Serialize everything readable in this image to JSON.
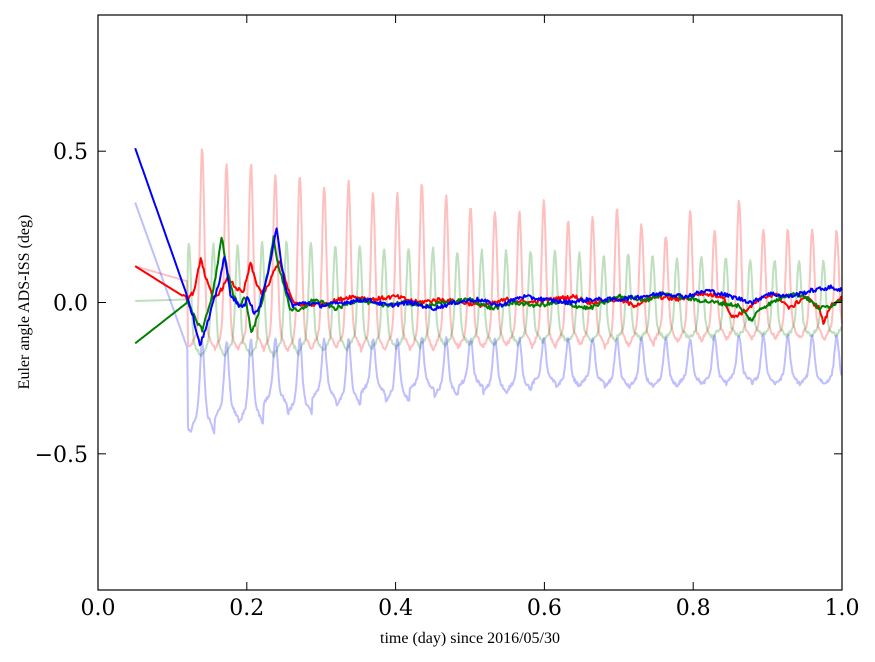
{
  "chart_data": {
    "type": "line",
    "title": "",
    "xlabel": "time (day) since 2016/05/30",
    "ylabel": "Euler angle ADS-ISS (deg)",
    "xlim": [
      0.0,
      1.0
    ],
    "ylim": [
      -0.95,
      0.95
    ],
    "xticks": [
      0.0,
      0.2,
      0.4,
      0.6,
      0.8,
      1.0
    ],
    "xtick_labels": [
      "0.0",
      "0.2",
      "0.4",
      "0.6",
      "0.8",
      "1.0"
    ],
    "yticks": [
      -0.5,
      0.0,
      0.5
    ],
    "ytick_labels": [
      "−0.5",
      "0.0",
      "0.5"
    ],
    "grid": false,
    "legend": "none",
    "series": [
      {
        "color": "#ff0000",
        "alpha": 0.25,
        "linewidth": 2,
        "model": {
          "start": [
            0.05,
            0.12
          ],
          "settle": 0.12,
          "mean": 0.07,
          "period": 0.0328,
          "phase": 0.14,
          "peaks": [
            0.51,
            0.46,
            0.46,
            0.42,
            0.42,
            0.38,
            0.4,
            0.36,
            0.36,
            0.39,
            0.35,
            0.32,
            0.3,
            0.3,
            0.34,
            0.27,
            0.28,
            0.31,
            0.26,
            0.22,
            0.3,
            0.24,
            0.34,
            0.24
          ],
          "lows": [
            -0.15,
            -0.16,
            -0.15,
            -0.16,
            -0.16,
            -0.15,
            -0.15,
            -0.16,
            -0.15,
            -0.16,
            -0.15,
            -0.15,
            -0.15,
            -0.14,
            -0.15,
            -0.14,
            -0.14,
            -0.15,
            -0.14,
            -0.13,
            -0.13,
            -0.12,
            -0.12,
            -0.12
          ]
        }
      },
      {
        "color": "#008000",
        "alpha": 0.25,
        "linewidth": 2,
        "model": {
          "start": [
            0.05,
            0.005
          ],
          "settle": 0.12,
          "mean": 0.01,
          "period": 0.0328,
          "phase": 0.155,
          "peaks": [
            0.19,
            0.19,
            0.2,
            0.2,
            0.2,
            0.19,
            0.19,
            0.18,
            0.18,
            0.18,
            0.17,
            0.17,
            0.17,
            0.17,
            0.17,
            0.16,
            0.16,
            0.16,
            0.16,
            0.15,
            0.15,
            0.15,
            0.14,
            0.14
          ],
          "lows": [
            -0.18,
            -0.17,
            -0.18,
            -0.17,
            -0.16,
            -0.16,
            -0.15,
            -0.15,
            -0.15,
            -0.14,
            -0.14,
            -0.14,
            -0.14,
            -0.13,
            -0.13,
            -0.13,
            -0.13,
            -0.12,
            -0.12,
            -0.12,
            -0.12,
            -0.11,
            -0.11,
            -0.11
          ]
        }
      },
      {
        "color": "#0000ff",
        "alpha": 0.25,
        "linewidth": 2,
        "model": {
          "start": [
            0.05,
            0.33
          ],
          "settle": 0.12,
          "mean": -0.15,
          "period": 0.0328,
          "phase": 0.14,
          "peaks": [
            -0.13,
            -0.13,
            -0.12,
            -0.12,
            -0.12,
            -0.12,
            -0.12,
            -0.12,
            -0.12,
            -0.12,
            -0.12,
            -0.12,
            -0.12,
            -0.12,
            -0.12,
            -0.12,
            -0.12,
            -0.12,
            -0.12,
            -0.12,
            -0.12,
            -0.11,
            -0.11,
            -0.11
          ],
          "lows": [
            -0.43,
            -0.39,
            -0.4,
            -0.34,
            -0.37,
            -0.32,
            -0.34,
            -0.3,
            -0.33,
            -0.29,
            -0.31,
            -0.28,
            -0.3,
            -0.29,
            -0.27,
            -0.28,
            -0.27,
            -0.28,
            -0.28,
            -0.28,
            -0.27,
            -0.27,
            -0.26,
            -0.27
          ]
        }
      },
      {
        "color": "#ff0000",
        "alpha": 1.0,
        "linewidth": 2,
        "points": [
          [
            0.05,
            0.12
          ],
          [
            0.115,
            0.02
          ],
          [
            0.12,
            0.01
          ],
          [
            0.13,
            0.04
          ],
          [
            0.138,
            0.15
          ],
          [
            0.145,
            0.08
          ],
          [
            0.155,
            0.01
          ],
          [
            0.165,
            0.04
          ],
          [
            0.175,
            0.08
          ],
          [
            0.185,
            0.05
          ],
          [
            0.195,
            0.03
          ],
          [
            0.205,
            0.13
          ],
          [
            0.212,
            0.07
          ],
          [
            0.22,
            0.03
          ],
          [
            0.228,
            0.05
          ],
          [
            0.236,
            0.1
          ],
          [
            0.244,
            0.14
          ],
          [
            0.252,
            0.07
          ],
          [
            0.262,
            0.0
          ],
          [
            0.28,
            -0.01
          ],
          [
            0.31,
            0.0
          ],
          [
            0.34,
            0.02
          ],
          [
            0.37,
            0.01
          ],
          [
            0.4,
            0.02
          ],
          [
            0.43,
            0.0
          ],
          [
            0.46,
            0.01
          ],
          [
            0.49,
            0.0
          ],
          [
            0.52,
            -0.01
          ],
          [
            0.55,
            0.01
          ],
          [
            0.58,
            0.0
          ],
          [
            0.61,
            0.01
          ],
          [
            0.64,
            0.02
          ],
          [
            0.66,
            0.0
          ],
          [
            0.7,
            0.01
          ],
          [
            0.72,
            -0.01
          ],
          [
            0.75,
            0.02
          ],
          [
            0.78,
            0.01
          ],
          [
            0.81,
            0.03
          ],
          [
            0.84,
            0.02
          ],
          [
            0.852,
            -0.05
          ],
          [
            0.868,
            -0.03
          ],
          [
            0.89,
            0.01
          ],
          [
            0.91,
            0.03
          ],
          [
            0.93,
            -0.02
          ],
          [
            0.95,
            0.02
          ],
          [
            0.97,
            -0.02
          ],
          [
            0.975,
            -0.07
          ],
          [
            0.985,
            -0.01
          ],
          [
            1.0,
            0.02
          ]
        ]
      },
      {
        "color": "#008000",
        "alpha": 1.0,
        "linewidth": 2,
        "points": [
          [
            0.05,
            -0.135
          ],
          [
            0.12,
            0.0
          ],
          [
            0.13,
            -0.05
          ],
          [
            0.14,
            -0.09
          ],
          [
            0.15,
            -0.01
          ],
          [
            0.158,
            0.08
          ],
          [
            0.166,
            0.22
          ],
          [
            0.174,
            0.1
          ],
          [
            0.182,
            0.02
          ],
          [
            0.19,
            -0.01
          ],
          [
            0.198,
            0.02
          ],
          [
            0.206,
            -0.1
          ],
          [
            0.214,
            -0.05
          ],
          [
            0.222,
            0.02
          ],
          [
            0.23,
            0.12
          ],
          [
            0.236,
            0.22
          ],
          [
            0.242,
            0.12
          ],
          [
            0.25,
            0.06
          ],
          [
            0.258,
            -0.02
          ],
          [
            0.27,
            -0.03
          ],
          [
            0.29,
            0.01
          ],
          [
            0.32,
            -0.02
          ],
          [
            0.35,
            0.01
          ],
          [
            0.38,
            -0.01
          ],
          [
            0.41,
            0.0
          ],
          [
            0.44,
            -0.01
          ],
          [
            0.47,
            0.0
          ],
          [
            0.5,
            0.01
          ],
          [
            0.53,
            -0.02
          ],
          [
            0.56,
            0.0
          ],
          [
            0.59,
            -0.01
          ],
          [
            0.62,
            0.0
          ],
          [
            0.66,
            -0.02
          ],
          [
            0.7,
            0.02
          ],
          [
            0.74,
            0.01
          ],
          [
            0.76,
            0.03
          ],
          [
            0.8,
            0.01
          ],
          [
            0.83,
            0.0
          ],
          [
            0.86,
            -0.01
          ],
          [
            0.878,
            -0.06
          ],
          [
            0.89,
            -0.02
          ],
          [
            0.93,
            0.03
          ],
          [
            0.95,
            0.02
          ],
          [
            0.97,
            -0.02
          ],
          [
            0.985,
            -0.01
          ],
          [
            1.0,
            0.01
          ]
        ]
      },
      {
        "color": "#0000ff",
        "alpha": 1.0,
        "linewidth": 2,
        "points": [
          [
            0.05,
            0.51
          ],
          [
            0.12,
            0.02
          ],
          [
            0.128,
            -0.05
          ],
          [
            0.137,
            -0.14
          ],
          [
            0.146,
            -0.08
          ],
          [
            0.155,
            0.0
          ],
          [
            0.163,
            0.07
          ],
          [
            0.17,
            0.15
          ],
          [
            0.178,
            0.03
          ],
          [
            0.186,
            0.0
          ],
          [
            0.194,
            -0.02
          ],
          [
            0.202,
            0.02
          ],
          [
            0.21,
            -0.04
          ],
          [
            0.218,
            -0.01
          ],
          [
            0.226,
            0.07
          ],
          [
            0.234,
            0.17
          ],
          [
            0.24,
            0.25
          ],
          [
            0.246,
            0.13
          ],
          [
            0.254,
            0.03
          ],
          [
            0.262,
            -0.01
          ],
          [
            0.28,
            0.0
          ],
          [
            0.3,
            -0.01
          ],
          [
            0.33,
            0.0
          ],
          [
            0.36,
            0.01
          ],
          [
            0.39,
            -0.01
          ],
          [
            0.42,
            0.0
          ],
          [
            0.45,
            -0.02
          ],
          [
            0.48,
            0.0
          ],
          [
            0.51,
            0.01
          ],
          [
            0.54,
            -0.01
          ],
          [
            0.57,
            0.02
          ],
          [
            0.6,
            0.01
          ],
          [
            0.63,
            0.0
          ],
          [
            0.66,
            0.01
          ],
          [
            0.7,
            0.01
          ],
          [
            0.73,
            0.02
          ],
          [
            0.76,
            0.03
          ],
          [
            0.79,
            0.02
          ],
          [
            0.82,
            0.04
          ],
          [
            0.85,
            0.02
          ],
          [
            0.88,
            0.0
          ],
          [
            0.9,
            0.03
          ],
          [
            0.93,
            0.02
          ],
          [
            0.96,
            0.04
          ],
          [
            0.985,
            0.05
          ],
          [
            1.0,
            0.04
          ]
        ]
      }
    ]
  }
}
